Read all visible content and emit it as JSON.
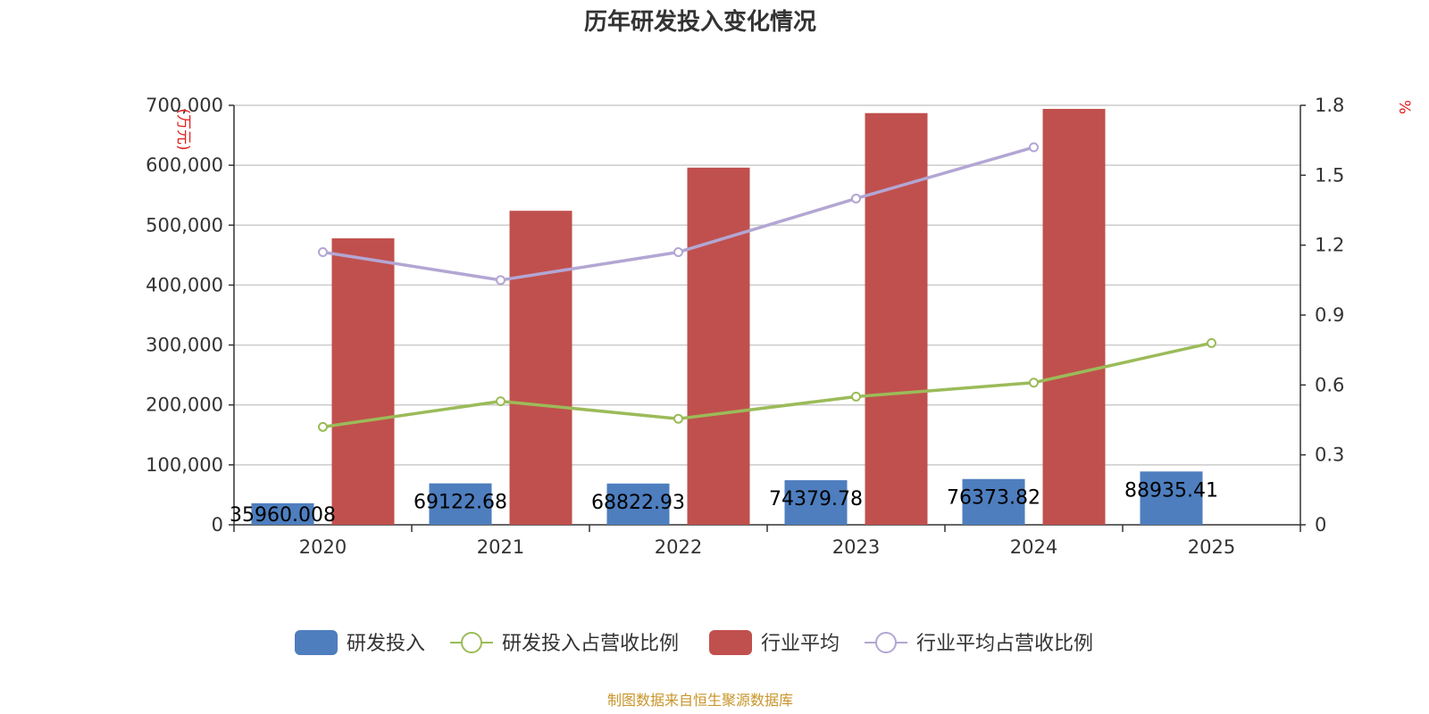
{
  "chart_data": {
    "type": "bar",
    "title": "历年研发投入变化情况",
    "categories": [
      "2020",
      "2021",
      "2022",
      "2023",
      "2024",
      "2025"
    ],
    "y_left": {
      "unit": "(万元)",
      "ylim": [
        0,
        700000
      ],
      "ticks": [
        "0",
        "100,000",
        "200,000",
        "300,000",
        "400,000",
        "500,000",
        "600,000",
        "700,000"
      ]
    },
    "y_right": {
      "unit": "%",
      "ylim": [
        0,
        1.8
      ],
      "ticks": [
        "0",
        "0.3",
        "0.6",
        "0.9",
        "1.2",
        "1.5",
        "1.8"
      ]
    },
    "grid": true,
    "legend_position": "bottom",
    "series": [
      {
        "name": "研发投入",
        "kind": "bar",
        "axis": "left",
        "color": "#4e7ebe",
        "values": [
          35960.008,
          69122.68,
          68822.93,
          74379.78,
          76373.82,
          88935.41
        ],
        "labels": [
          "35960.008",
          "69122.68",
          "68822.93",
          "74379.78",
          "76373.82",
          "88935.41"
        ]
      },
      {
        "name": "研发投入占营收比例",
        "kind": "line",
        "axis": "right",
        "color": "#9bbb59",
        "values": [
          0.42,
          0.53,
          0.455,
          0.55,
          0.61,
          0.78
        ]
      },
      {
        "name": "行业平均",
        "kind": "bar",
        "axis": "left",
        "color": "#c0504d",
        "values": [
          478000,
          524000,
          596000,
          687000,
          694000,
          null
        ]
      },
      {
        "name": "行业平均占营收比例",
        "kind": "line",
        "axis": "right",
        "color": "#b3a6d3",
        "values": [
          1.17,
          1.05,
          1.17,
          1.4,
          1.62,
          null
        ]
      }
    ],
    "source": "制图数据来自恒生聚源数据库"
  }
}
